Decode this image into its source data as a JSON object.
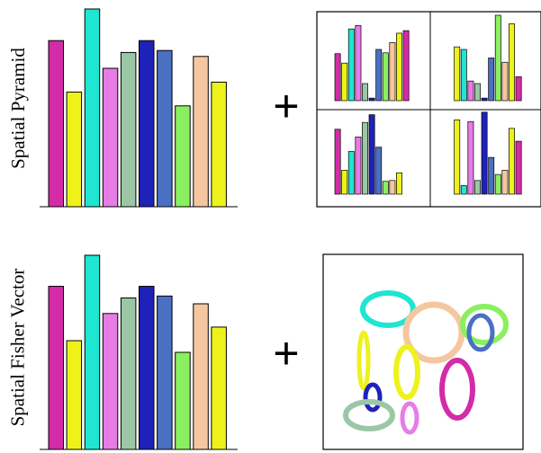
{
  "rows": [
    {
      "label": "Spatial Pyramid",
      "plus": "+",
      "histogram": {
        "bins": [
          {
            "color": "#d42ba8",
            "value": 0.84
          },
          {
            "color": "#eef21b",
            "value": 0.58
          },
          {
            "color": "#1ee6d0",
            "value": 1.0
          },
          {
            "color": "#e67ce6",
            "value": 0.7
          },
          {
            "color": "#9cc7a6",
            "value": 0.78
          },
          {
            "color": "#1f22b8",
            "value": 0.84
          },
          {
            "color": "#4a70c4",
            "value": 0.79
          },
          {
            "color": "#8af05f",
            "value": 0.51
          },
          {
            "color": "#f5c7a0",
            "value": 0.76
          },
          {
            "color": "#eef21b",
            "value": 0.63
          }
        ]
      },
      "pyramid_cells": [
        [
          0.55,
          0.44,
          0.84,
          0.88,
          0.2,
          0.03,
          0.6,
          0.56,
          0.68,
          0.79,
          0.82
        ],
        [
          0.0,
          0.63,
          0.6,
          0.23,
          0.2,
          0.03,
          0.5,
          1.0,
          0.45,
          0.9,
          0.28
        ],
        [
          0.76,
          0.28,
          0.5,
          0.67,
          0.84,
          0.93,
          0.55,
          0.15,
          0.16,
          0.25,
          0.0
        ],
        [
          0.0,
          0.87,
          0.1,
          0.85,
          0.16,
          0.96,
          0.43,
          0.23,
          0.28,
          0.77,
          0.62
        ]
      ]
    },
    {
      "label": "Spatial Fisher Vector",
      "plus": "+",
      "histogram": {
        "bins": [
          {
            "color": "#d42ba8",
            "value": 0.84
          },
          {
            "color": "#eef21b",
            "value": 0.56
          },
          {
            "color": "#1ee6d0",
            "value": 1.0
          },
          {
            "color": "#e67ce6",
            "value": 0.7
          },
          {
            "color": "#9cc7a6",
            "value": 0.78
          },
          {
            "color": "#1f22b8",
            "value": 0.84
          },
          {
            "color": "#4a70c4",
            "value": 0.79
          },
          {
            "color": "#8af05f",
            "value": 0.5
          },
          {
            "color": "#f5c7a0",
            "value": 0.75
          },
          {
            "color": "#eef21b",
            "value": 0.63
          }
        ]
      },
      "gaussians": [
        {
          "color": "#1ee6d0"
        },
        {
          "color": "#f5c7a0"
        },
        {
          "color": "#8af05f"
        },
        {
          "color": "#4a70c4"
        },
        {
          "color": "#eef21b"
        },
        {
          "color": "#eef21b"
        },
        {
          "color": "#d42ba8"
        },
        {
          "color": "#1f22b8"
        },
        {
          "color": "#9cc7a6"
        },
        {
          "color": "#e67ce6"
        }
      ]
    }
  ]
}
